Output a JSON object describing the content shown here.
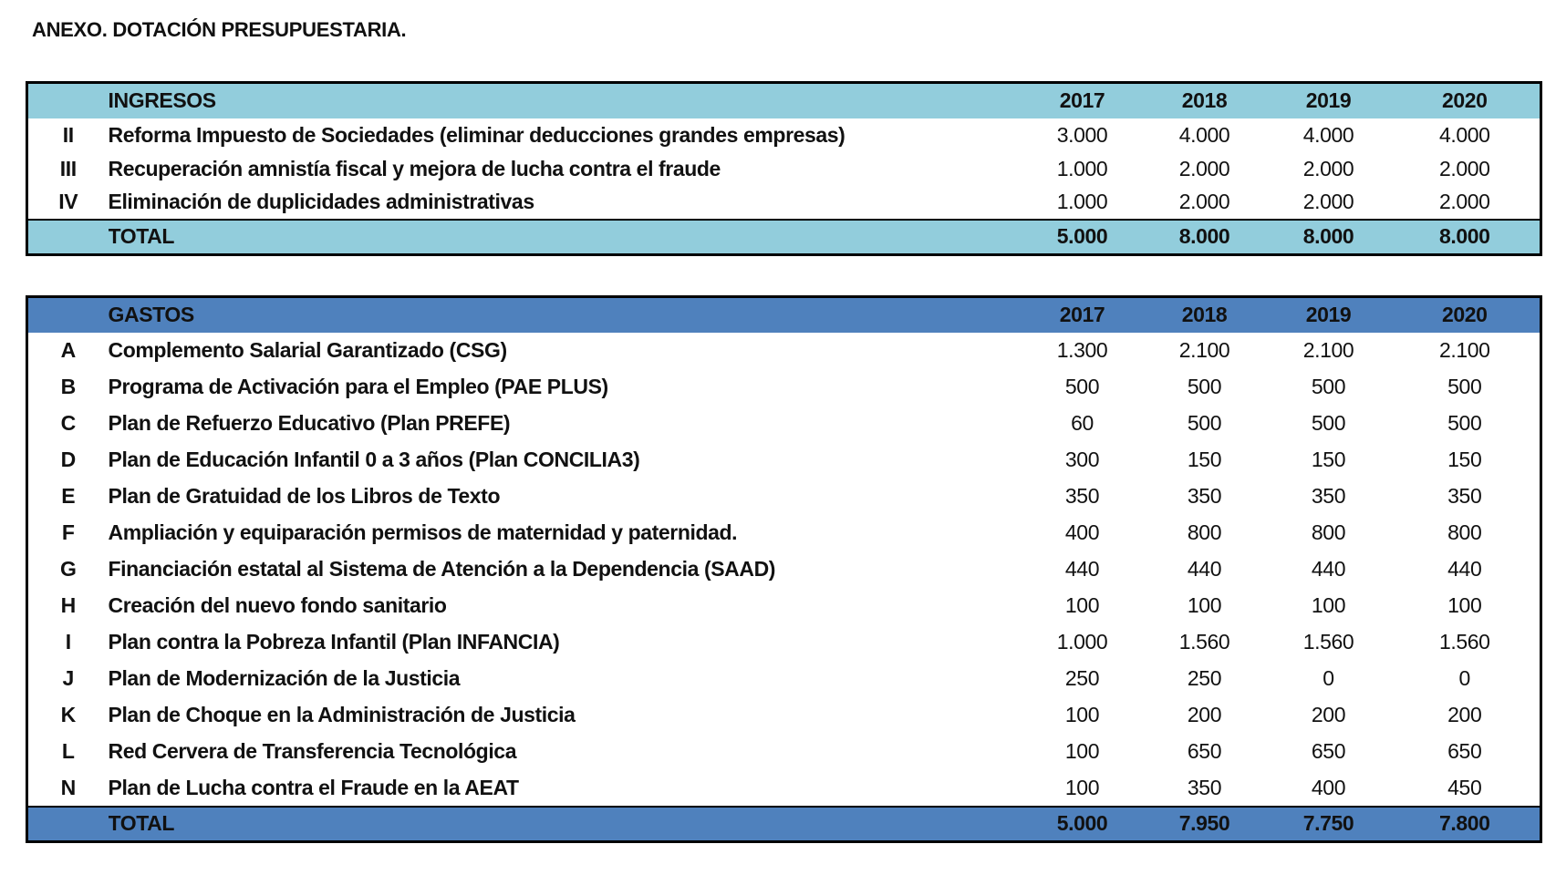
{
  "title": "ANEXO. DOTACIÓN PRESUPUESTARIA.",
  "ingresos": {
    "header": [
      "INGRESOS",
      "2017",
      "2018",
      "2019",
      "2020"
    ],
    "rows": [
      [
        "II",
        "Reforma Impuesto de Sociedades (eliminar deducciones grandes empresas)",
        "3.000",
        "4.000",
        "4.000",
        "4.000"
      ],
      [
        "III",
        "Recuperación amnistía fiscal y mejora de lucha contra el fraude",
        "1.000",
        "2.000",
        "2.000",
        "2.000"
      ],
      [
        "IV",
        "Eliminación de duplicidades administrativas",
        "1.000",
        "2.000",
        "2.000",
        "2.000"
      ]
    ],
    "total": [
      "TOTAL",
      "5.000",
      "8.000",
      "8.000",
      "8.000"
    ]
  },
  "gastos": {
    "header": [
      "GASTOS",
      "2017",
      "2018",
      "2019",
      "2020"
    ],
    "rows": [
      [
        "A",
        "Complemento Salarial Garantizado (CSG)",
        "1.300",
        "2.100",
        "2.100",
        "2.100"
      ],
      [
        "B",
        "Programa de Activación para el Empleo (PAE PLUS)",
        "500",
        "500",
        "500",
        "500"
      ],
      [
        "C",
        "Plan de Refuerzo Educativo (Plan PREFE)",
        "60",
        "500",
        "500",
        "500"
      ],
      [
        "D",
        "Plan de Educación Infantil 0 a 3 años (Plan CONCILIA3)",
        "300",
        "150",
        "150",
        "150"
      ],
      [
        "E",
        "Plan de Gratuidad de los Libros de Texto",
        "350",
        "350",
        "350",
        "350"
      ],
      [
        "F",
        "Ampliación y equiparación permisos de maternidad y paternidad.",
        "400",
        "800",
        "800",
        "800"
      ],
      [
        "G",
        "Financiación estatal al Sistema de Atención a la Dependencia (SAAD)",
        "440",
        "440",
        "440",
        "440"
      ],
      [
        "H",
        "Creación del nuevo fondo sanitario",
        "100",
        "100",
        "100",
        "100"
      ],
      [
        "I",
        "Plan contra la Pobreza Infantil (Plan INFANCIA)",
        "1.000",
        "1.560",
        "1.560",
        "1.560"
      ],
      [
        "J",
        "Plan de Modernización de la Justicia",
        "250",
        "250",
        "0",
        "0"
      ],
      [
        "K",
        "Plan de Choque en la Administración de Justicia",
        "100",
        "200",
        "200",
        "200"
      ],
      [
        "L",
        "Red Cervera de Transferencia Tecnológica",
        "100",
        "650",
        "650",
        "650"
      ],
      [
        "N",
        "Plan de Lucha contra el Fraude en la AEAT",
        "100",
        "350",
        "400",
        "450"
      ]
    ],
    "total": [
      "TOTAL",
      "5.000",
      "7.950",
      "7.750",
      "7.800"
    ]
  }
}
